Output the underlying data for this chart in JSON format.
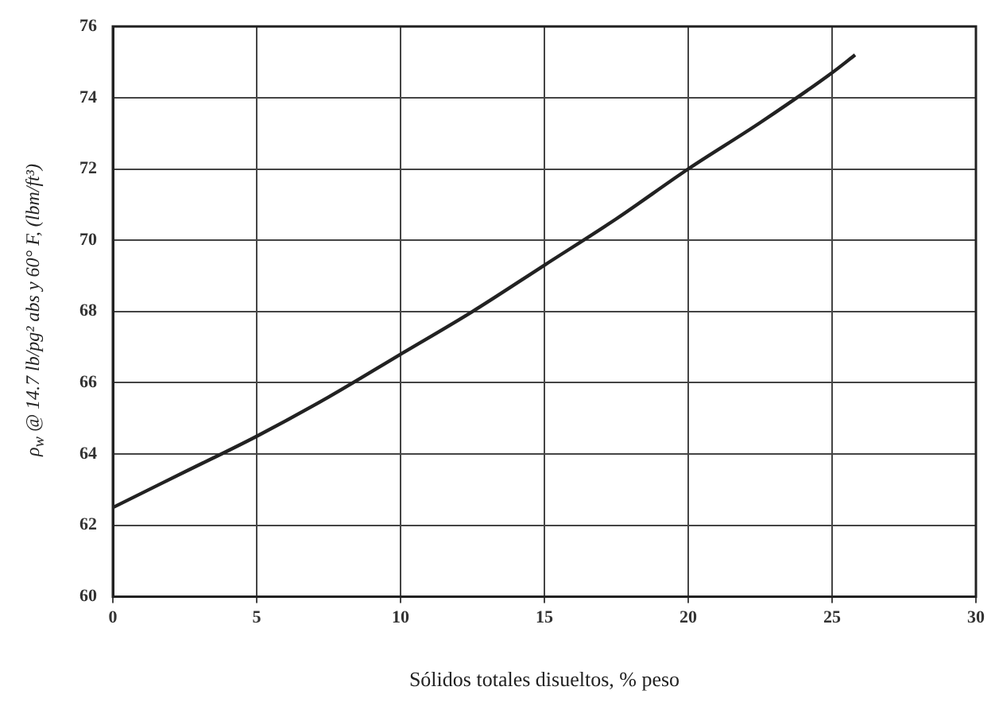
{
  "chart_data": {
    "type": "line",
    "xlabel": "Sólidos totales disueltos, % peso",
    "ylabel": "ρ$_{w}$ @ 14.7 lb/pg² abs y 60° F, (lbm/ft³)",
    "series": [
      {
        "color": "#222222",
        "x": [
          0,
          2.5,
          5,
          7.5,
          10,
          12.5,
          15,
          17.5,
          20,
          22.5,
          25,
          25.8
        ],
        "values": [
          62.5,
          63.5,
          64.5,
          65.6,
          66.8,
          68.0,
          69.3,
          70.6,
          72.0,
          73.3,
          74.7,
          75.2
        ]
      }
    ],
    "xlim": [
      0,
      30
    ],
    "xticks": [
      0,
      5,
      10,
      15,
      20,
      25,
      30
    ],
    "ylim": [
      60,
      76
    ],
    "yticks": [
      60,
      62,
      64,
      66,
      68,
      70,
      72,
      74,
      76
    ],
    "grid": true,
    "legend": false,
    "marker": "none",
    "line_style": "solid"
  }
}
